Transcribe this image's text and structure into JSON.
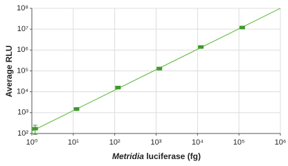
{
  "chart_data": {
    "type": "scatter",
    "log_x": true,
    "log_y": true,
    "grid": true,
    "ylabel": "Average RLU",
    "xlabel": [
      {
        "text": "Metridia",
        "italic": true
      },
      {
        "text": " luciferase (fg)",
        "italic": false
      }
    ],
    "xlim": [
      1,
      1000000
    ],
    "xticks": [
      {
        "value": 1,
        "label": "10⁰"
      },
      {
        "value": 10,
        "label": "10¹"
      },
      {
        "value": 100,
        "label": "10²"
      },
      {
        "value": 1000,
        "label": "10³"
      },
      {
        "value": 10000,
        "label": "10⁴"
      },
      {
        "value": 100000,
        "label": "10⁵"
      },
      {
        "value": 1000000,
        "label": "10⁶"
      }
    ],
    "ylim": [
      100,
      100000000
    ],
    "yticks": [
      {
        "value": 100,
        "label": "10²"
      },
      {
        "value": 1000,
        "label": "10³"
      },
      {
        "value": 10000,
        "label": "10⁴"
      },
      {
        "value": 100000,
        "label": "10⁵"
      },
      {
        "value": 1000000,
        "label": "10⁶"
      },
      {
        "value": 10000000,
        "label": "10⁷"
      },
      {
        "value": 100000000,
        "label": "10⁸"
      }
    ],
    "series": [
      {
        "color": "#3f9a2c",
        "x": [
          1.2,
          12,
          120,
          1200,
          12000,
          120000
        ],
        "values": [
          170,
          1500,
          16000,
          130000,
          1400000,
          12000000
        ],
        "errors": [
          80,
          250,
          2500,
          20000,
          200000,
          1500000
        ]
      }
    ],
    "fit": {
      "color": "#6cbf4a",
      "x": [
        1,
        1000000
      ],
      "values": [
        130,
        100000000
      ]
    }
  }
}
